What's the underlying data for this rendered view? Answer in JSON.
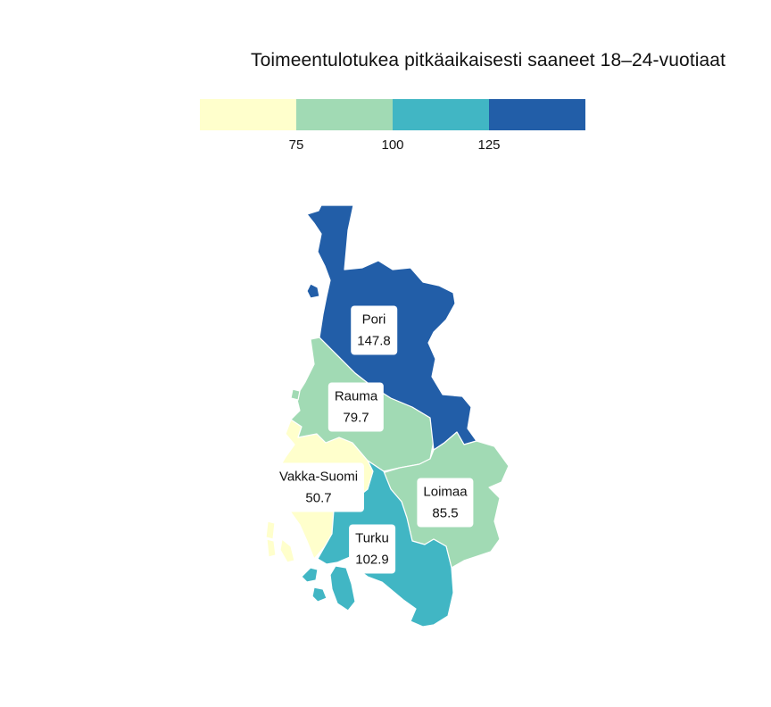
{
  "title": "Toimeentulotukea pitkäaikaisesti saaneet 18–24-vuotiaat",
  "legend": {
    "breaks": [
      "75",
      "100",
      "125"
    ],
    "colors": [
      "#ffffcc",
      "#a1dab4",
      "#41b6c4",
      "#225ea8"
    ]
  },
  "regions": [
    {
      "id": "pori",
      "name": "Pori",
      "value": "147.8",
      "color": "#225ea8"
    },
    {
      "id": "rauma",
      "name": "Rauma",
      "value": "79.7",
      "color": "#a1dab4"
    },
    {
      "id": "vakka-suomi",
      "name": "Vakka-Suomi",
      "value": "50.7",
      "color": "#ffffcc"
    },
    {
      "id": "loimaa",
      "name": "Loimaa",
      "value": "85.5",
      "color": "#a1dab4"
    },
    {
      "id": "turku",
      "name": "Turku",
      "value": "102.9",
      "color": "#41b6c4"
    }
  ]
}
